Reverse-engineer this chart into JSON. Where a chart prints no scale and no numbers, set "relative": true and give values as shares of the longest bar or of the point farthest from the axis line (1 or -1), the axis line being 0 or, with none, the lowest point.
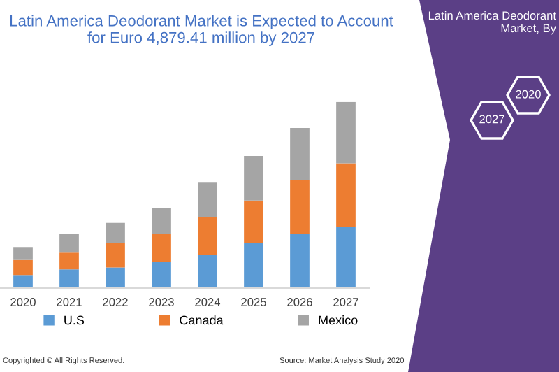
{
  "chart_data": {
    "type": "bar",
    "stacked": true,
    "relative": true,
    "title": "Latin America Deodorant Market is Expected to Account\nfor Euro 4,879.41 million by 2027",
    "categories": [
      "2020",
      "2021",
      "2022",
      "2023",
      "2024",
      "2025",
      "2026",
      "2027"
    ],
    "series": [
      {
        "name": "U.S",
        "color": "#5b9bd5",
        "values": [
          0.07,
          0.1,
          0.11,
          0.14,
          0.18,
          0.24,
          0.29,
          0.33
        ]
      },
      {
        "name": "Canada",
        "color": "#ed7d31",
        "values": [
          0.08,
          0.09,
          0.13,
          0.15,
          0.2,
          0.23,
          0.29,
          0.34
        ]
      },
      {
        "name": "Mexico",
        "color": "#a5a5a5",
        "values": [
          0.07,
          0.1,
          0.11,
          0.14,
          0.19,
          0.24,
          0.28,
          0.33
        ]
      }
    ],
    "legend": "bottom",
    "grid": false,
    "annotations": [
      "Copyrighted © All Rights Reserved.",
      "Source: Market Analysis Study 2020",
      "Latin America Deodorant\nMarket, By",
      "2020",
      "2027"
    ]
  }
}
